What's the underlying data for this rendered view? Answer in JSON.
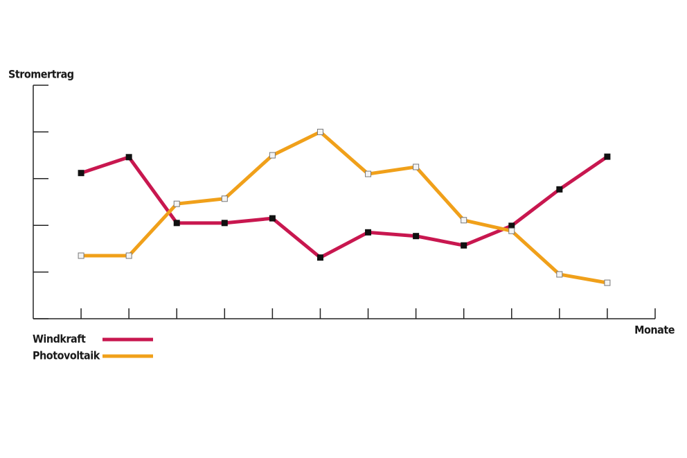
{
  "chart_data": {
    "type": "line",
    "y_label": "Stromertrag",
    "x_label": "Monate",
    "categories": [
      null,
      null,
      null,
      null,
      null,
      null,
      null,
      null,
      null,
      null,
      null,
      null
    ],
    "series": [
      {
        "name": "Windkraft",
        "color": "#c8174f",
        "values": [
          3.12,
          3.46,
          2.05,
          2.05,
          2.15,
          1.31,
          1.85,
          1.77,
          1.57,
          1.99,
          2.77,
          3.47
        ]
      },
      {
        "name": "Photovoltaik",
        "color": "#f0a01a",
        "values": [
          1.35,
          1.35,
          2.46,
          2.57,
          3.5,
          4.0,
          3.1,
          3.25,
          2.11,
          1.88,
          0.95,
          0.77
        ]
      }
    ],
    "ylim": [
      0,
      5
    ],
    "yticks": [
      0,
      1,
      2,
      3,
      4,
      5
    ],
    "grid": false
  }
}
